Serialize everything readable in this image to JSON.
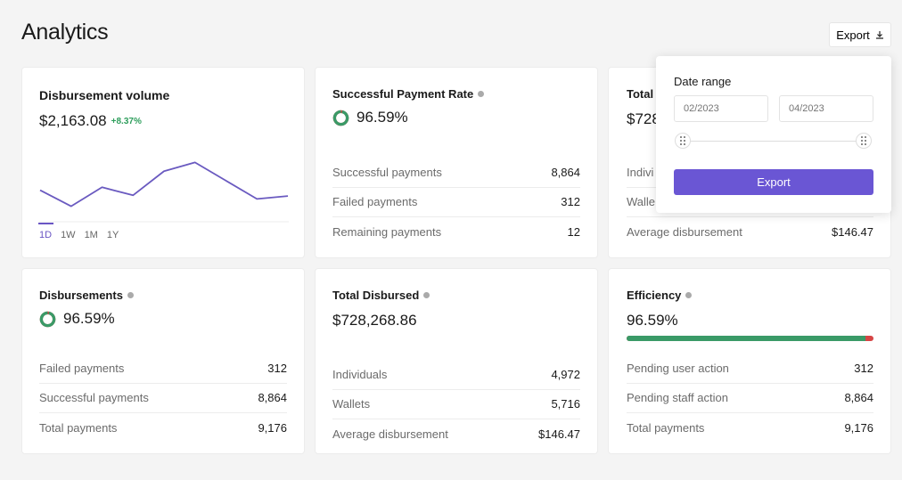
{
  "page": {
    "title": "Analytics"
  },
  "header": {
    "export_label": "Export"
  },
  "volume": {
    "title": "Disbursement volume",
    "value": "$2,163.08",
    "delta": "+8.37%",
    "tabs": [
      "1D",
      "1W",
      "1M",
      "1Y"
    ],
    "active_tab": "1D"
  },
  "chart_data": {
    "type": "line",
    "title": "",
    "xlabel": "",
    "ylabel": "",
    "series": [
      {
        "values": [
          42,
          20,
          46,
          35,
          68,
          80,
          55,
          30,
          34
        ]
      }
    ],
    "ylim": [
      0,
      100
    ],
    "grid": false,
    "color": "#6a5ac0"
  },
  "payment_rate": {
    "title": "Successful Payment Rate",
    "value": "96.59%",
    "rate": 0.9659,
    "rows": [
      {
        "label": "Successful payments",
        "value": "8,864"
      },
      {
        "label": "Failed payments",
        "value": "312"
      },
      {
        "label": "Remaining payments",
        "value": "12"
      }
    ]
  },
  "total_hidden": {
    "title": "Total",
    "value": "$728",
    "rows": [
      {
        "label": "Indivi",
        "value": ""
      },
      {
        "label": "Walle",
        "value": ""
      },
      {
        "label": "Average disbursement",
        "value": "$146.47"
      }
    ]
  },
  "disbursements": {
    "title": "Disbursements",
    "value": "96.59%",
    "rate": 0.9659,
    "rows": [
      {
        "label": "Failed payments",
        "value": "312"
      },
      {
        "label": "Successful payments",
        "value": "8,864"
      },
      {
        "label": "Total payments",
        "value": "9,176"
      }
    ]
  },
  "total_disbursed": {
    "title": "Total Disbursed",
    "value": "$728,268.86",
    "rows": [
      {
        "label": "Individuals",
        "value": "4,972"
      },
      {
        "label": "Wallets",
        "value": "5,716"
      },
      {
        "label": "Average disbursement",
        "value": "$146.47"
      }
    ]
  },
  "efficiency": {
    "title": "Efficiency",
    "value": "96.59%",
    "progress": 0.9659,
    "rows": [
      {
        "label": "Pending user action",
        "value": "312"
      },
      {
        "label": "Pending staff action",
        "value": "8,864"
      },
      {
        "label": "Total payments",
        "value": "9,176"
      }
    ]
  },
  "export_popover": {
    "label": "Date range",
    "start_placeholder": "02/2023",
    "end_placeholder": "04/2023",
    "button": "Export"
  },
  "colors": {
    "accent": "#6a56d4",
    "success": "#3a9a67",
    "danger": "#d64545"
  }
}
